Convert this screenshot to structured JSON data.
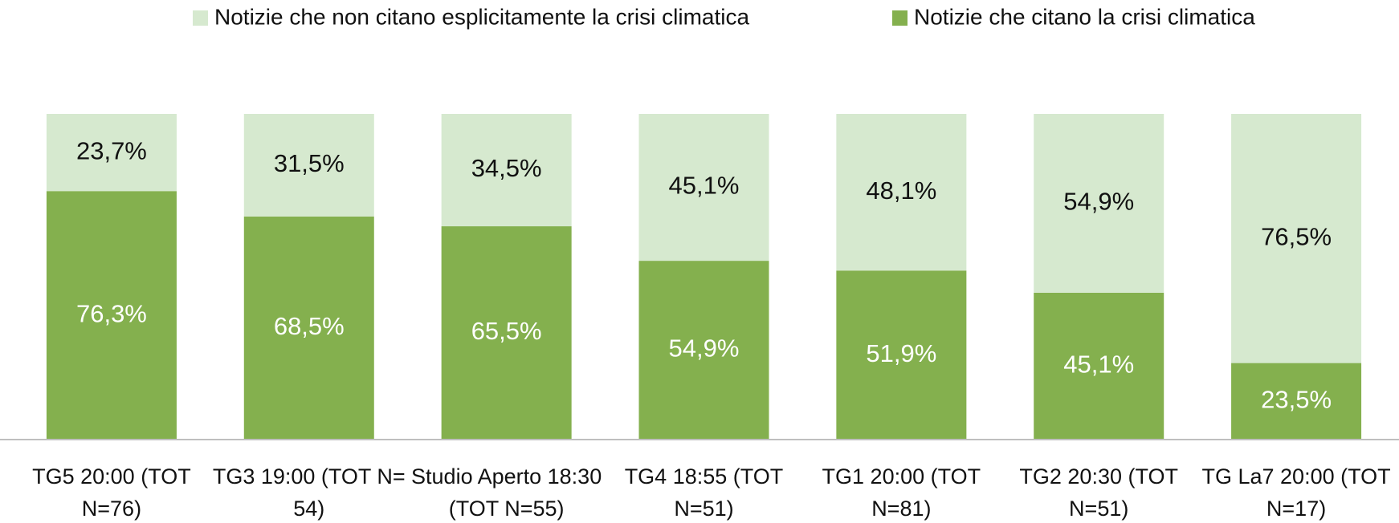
{
  "chart_data": {
    "type": "stacked_bar",
    "categories": [
      "TG5 20:00 (TOT N=76)",
      "TG3 19:00 (TOT N= 54)",
      "Studio Aperto 18:30 (TOT N=55)",
      "TG4 18:55 (TOT N=51)",
      "TG1 20:00 (TOT N=81)",
      "TG2 20:30 (TOT N=51)",
      "TG La7 20:00 (TOT N=17)"
    ],
    "series": [
      {
        "name": "Notizie che non citano esplicitamente la crisi climatica",
        "color": "#d6e9cf",
        "values": [
          23.7,
          31.5,
          34.5,
          45.1,
          48.1,
          54.9,
          76.5
        ],
        "value_labels": [
          "23,7%",
          "31,5%",
          "34,5%",
          "45,1%",
          "48,1%",
          "54,9%",
          "76,5%"
        ],
        "label_color": "#111111"
      },
      {
        "name": "Notizie che citano la crisi climatica",
        "color": "#84b04e",
        "values": [
          76.3,
          68.5,
          65.5,
          54.9,
          51.9,
          45.1,
          23.5
        ],
        "value_labels": [
          "76,3%",
          "68,5%",
          "65,5%",
          "54,9%",
          "51,9%",
          "45,1%",
          "23,5%"
        ],
        "label_color": "#ffffff"
      }
    ],
    "stack_order": "last_series_at_bottom",
    "ylim": [
      0,
      100
    ],
    "legend": "top",
    "grid": false
  }
}
